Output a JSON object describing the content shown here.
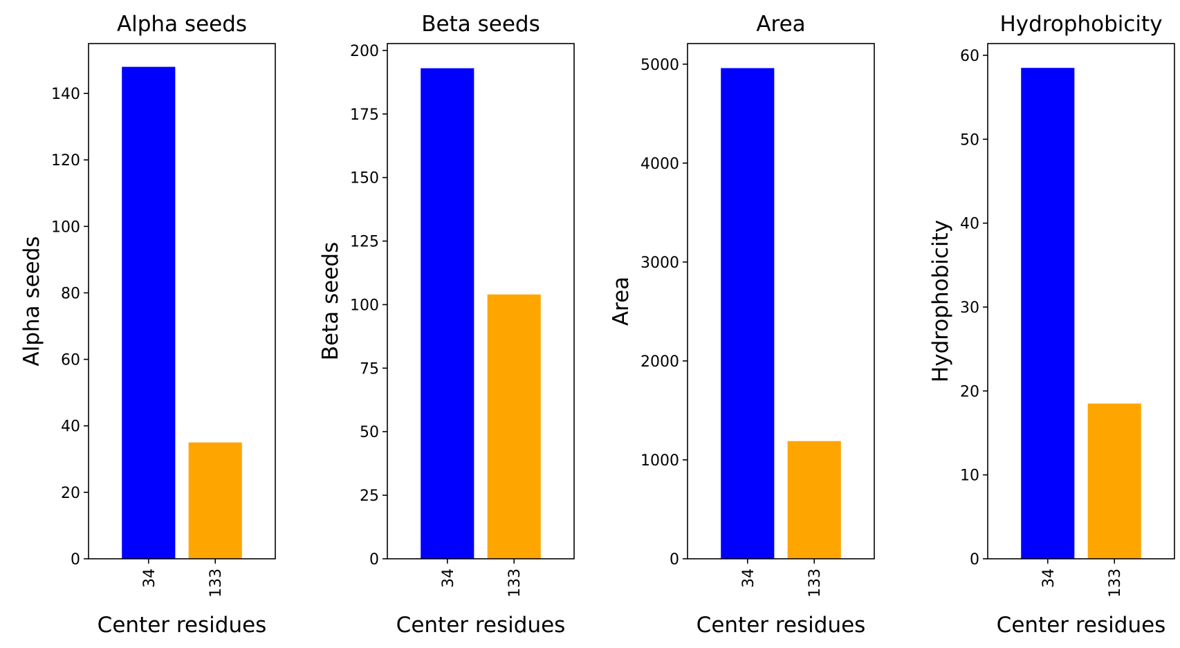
{
  "chart_data": [
    {
      "type": "bar",
      "title": "Alpha seeds",
      "xlabel": "Center residues",
      "ylabel": "Alpha seeds",
      "categories": [
        "34",
        "133"
      ],
      "values": [
        148,
        35
      ],
      "colors": [
        "#0000ff",
        "#ffa500"
      ],
      "ylim": [
        0,
        155
      ],
      "yticks": [
        0,
        20,
        40,
        60,
        80,
        100,
        120,
        140
      ],
      "grid": false,
      "legend": "none"
    },
    {
      "type": "bar",
      "title": "Beta seeds",
      "xlabel": "Center residues",
      "ylabel": "Beta seeds",
      "categories": [
        "34",
        "133"
      ],
      "values": [
        193,
        104
      ],
      "colors": [
        "#0000ff",
        "#ffa500"
      ],
      "ylim": [
        0,
        202.7
      ],
      "yticks": [
        0,
        25,
        50,
        75,
        100,
        125,
        150,
        175,
        200
      ],
      "grid": false,
      "legend": "none"
    },
    {
      "type": "bar",
      "title": "Area",
      "xlabel": "Center residues",
      "ylabel": "Area",
      "categories": [
        "34",
        "133"
      ],
      "values": [
        4960,
        1190
      ],
      "colors": [
        "#0000ff",
        "#ffa500"
      ],
      "ylim": [
        0,
        5208
      ],
      "yticks": [
        0,
        1000,
        2000,
        3000,
        4000,
        5000
      ],
      "grid": false,
      "legend": "none"
    },
    {
      "type": "bar",
      "title": "Hydrophobicity",
      "xlabel": "Center residues",
      "ylabel": "Hydrophobicity",
      "categories": [
        "34",
        "133"
      ],
      "values": [
        58.5,
        18.5
      ],
      "colors": [
        "#0000ff",
        "#ffa500"
      ],
      "ylim": [
        0,
        61.4
      ],
      "yticks": [
        0,
        10,
        20,
        30,
        40,
        50,
        60
      ],
      "grid": false,
      "legend": "none"
    }
  ]
}
